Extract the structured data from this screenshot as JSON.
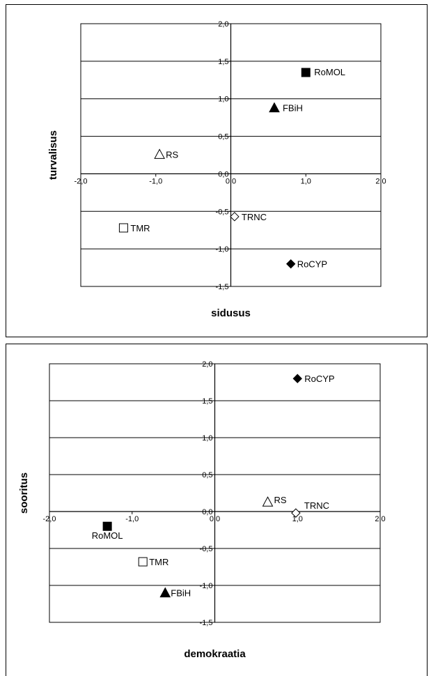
{
  "chart_data": [
    {
      "type": "scatter",
      "title": "",
      "xlabel": "sidusus",
      "ylabel": "turvalisus",
      "xlim": [
        -2.0,
        2.0
      ],
      "ylim": [
        -1.5,
        2.0
      ],
      "xticks": [
        "-2,0",
        "-1,0",
        "0,0",
        "1,0",
        "2,0"
      ],
      "yticks": [
        "2,0",
        "1,5",
        "1,0",
        "0,5",
        "0,0",
        "-0,5",
        "-1,0",
        "-1,5"
      ],
      "grid": "horizontal",
      "points": [
        {
          "label": "RoMOL",
          "x": 1.0,
          "y": 1.35,
          "marker": "square-filled"
        },
        {
          "label": "FBiH",
          "x": 0.58,
          "y": 0.88,
          "marker": "triangle-filled"
        },
        {
          "label": "RS",
          "x": -0.95,
          "y": 0.26,
          "marker": "triangle-open"
        },
        {
          "label": "TRNC",
          "x": 0.05,
          "y": -0.57,
          "marker": "diamond-open"
        },
        {
          "label": "TMR",
          "x": -1.43,
          "y": -0.72,
          "marker": "square-open"
        },
        {
          "label": "RoCYP",
          "x": 0.8,
          "y": -1.2,
          "marker": "diamond-filled"
        }
      ]
    },
    {
      "type": "scatter",
      "title": "",
      "xlabel": "demokraatia",
      "ylabel": "sooritus",
      "xlim": [
        -2.0,
        2.0
      ],
      "ylim": [
        -1.5,
        2.0
      ],
      "xticks": [
        "-2,0",
        "-1,0",
        "0,0",
        "1,0",
        "2,0"
      ],
      "yticks": [
        "2,0",
        "1,5",
        "1,0",
        "0,5",
        "0,0",
        "-0,5",
        "-1,0",
        "-1,5"
      ],
      "grid": "horizontal",
      "points": [
        {
          "label": "RoCYP",
          "x": 1.0,
          "y": 1.8,
          "marker": "diamond-filled"
        },
        {
          "label": "RS",
          "x": 0.64,
          "y": 0.13,
          "marker": "triangle-open"
        },
        {
          "label": "TRNC",
          "x": 0.98,
          "y": -0.02,
          "marker": "diamond-open"
        },
        {
          "label": "RoMOL",
          "x": -1.3,
          "y": -0.2,
          "marker": "square-filled"
        },
        {
          "label": "TMR",
          "x": -0.87,
          "y": -0.68,
          "marker": "square-open"
        },
        {
          "label": "FBiH",
          "x": -0.6,
          "y": -1.1,
          "marker": "triangle-filled"
        }
      ]
    }
  ]
}
